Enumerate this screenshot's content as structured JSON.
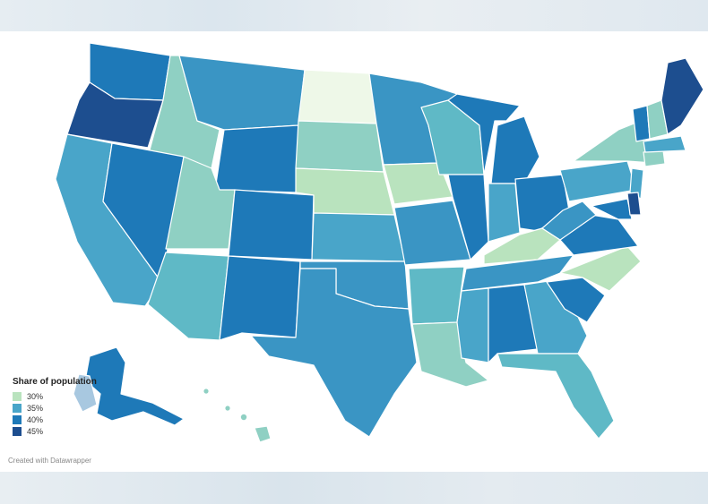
{
  "legend": {
    "title": "Share of population",
    "items": [
      {
        "label": "30%",
        "color": "#b9e3be"
      },
      {
        "label": "35%",
        "color": "#49a5c9"
      },
      {
        "label": "40%",
        "color": "#1e79b8"
      },
      {
        "label": "45%",
        "color": "#1d4e8f"
      }
    ]
  },
  "credit": "Created with Datawrapper",
  "colors": {
    "c30": "#b9e3be",
    "c32": "#8fd0c3",
    "c35": "#49a5c9",
    "c38": "#3a95c4",
    "c40": "#1e79b8",
    "c45": "#1d4e8f",
    "pale": "#eef8e8"
  }
}
